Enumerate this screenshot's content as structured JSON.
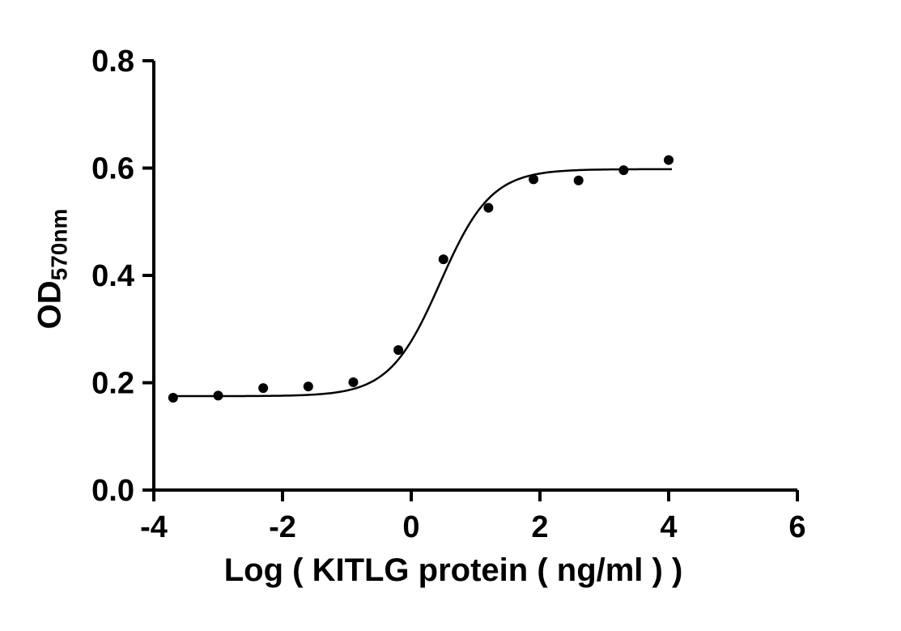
{
  "chart_data": {
    "type": "scatter",
    "title": "",
    "xlabel": "Log ( KITLG protein ( ng/ml )   )",
    "ylabel_main": "OD",
    "ylabel_sub": "570nm",
    "xlim": [
      -4,
      6
    ],
    "ylim": [
      0,
      0.8
    ],
    "grid": false,
    "legend": false,
    "point_color": "#000000",
    "line_color": "#000000",
    "axis_color": "#000000",
    "x_ticks": [
      {
        "value": -4,
        "label": "-4"
      },
      {
        "value": -2,
        "label": "-2"
      },
      {
        "value": 0,
        "label": "0"
      },
      {
        "value": 2,
        "label": "2"
      },
      {
        "value": 4,
        "label": "4"
      },
      {
        "value": 6,
        "label": "6"
      }
    ],
    "y_ticks": [
      {
        "value": 0.0,
        "label": "0.0"
      },
      {
        "value": 0.2,
        "label": "0.2"
      },
      {
        "value": 0.4,
        "label": "0.4"
      },
      {
        "value": 0.6,
        "label": "0.6"
      },
      {
        "value": 0.8,
        "label": "0.8"
      }
    ],
    "points": [
      {
        "x": -3.7,
        "y": 0.172
      },
      {
        "x": -3.0,
        "y": 0.176
      },
      {
        "x": -2.3,
        "y": 0.19
      },
      {
        "x": -1.6,
        "y": 0.193
      },
      {
        "x": -0.9,
        "y": 0.201
      },
      {
        "x": -0.2,
        "y": 0.261
      },
      {
        "x": 0.5,
        "y": 0.43
      },
      {
        "x": 1.2,
        "y": 0.526
      },
      {
        "x": 1.9,
        "y": 0.579
      },
      {
        "x": 2.6,
        "y": 0.577
      },
      {
        "x": 3.3,
        "y": 0.596
      },
      {
        "x": 4.0,
        "y": 0.615
      }
    ],
    "fit": {
      "model": "4PL",
      "bottom": 0.175,
      "top": 0.598,
      "logEC50": 0.45,
      "hillslope": 1.1,
      "x_start": -3.7,
      "x_end": 4.05
    }
  }
}
